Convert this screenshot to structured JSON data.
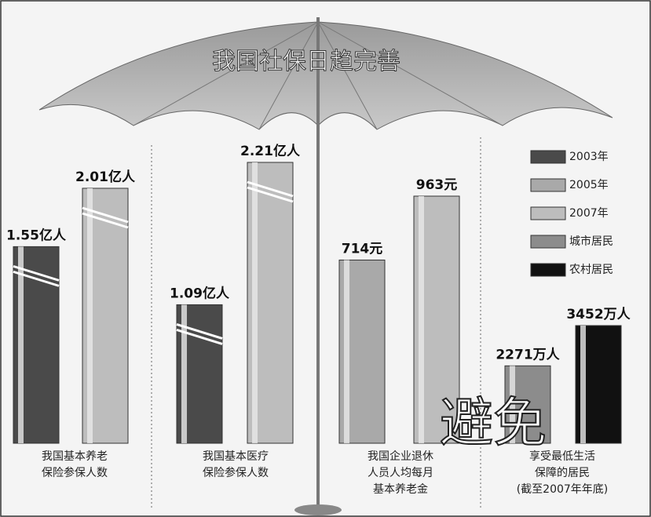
{
  "chart_data": {
    "type": "bar",
    "title": "我国社保日趋完善",
    "watermark": "避免",
    "categories": [
      "我国基本养老\n保险参保人数",
      "我国基本医疗\n保险参保人数",
      "我国企业退休\n人员人均每月\n基本养老金",
      "享受最低生活\n保障的居民\n(截至2007年年底)"
    ],
    "series": [
      {
        "name": "2003年",
        "color": "#4a4a4a",
        "values": [
          1.55,
          1.09,
          null,
          null
        ],
        "value_labels": [
          "1.55亿人",
          "1.09亿人",
          null,
          null
        ]
      },
      {
        "name": "2005年",
        "color": "#a9a9a9",
        "values": [
          null,
          null,
          714,
          null
        ],
        "value_labels": [
          null,
          null,
          "714元",
          null
        ]
      },
      {
        "name": "2007年",
        "color": "#bdbdbd",
        "values": [
          2.01,
          2.21,
          963,
          null
        ],
        "value_labels": [
          "2.01亿人",
          "2.21亿人",
          "963元",
          null
        ]
      },
      {
        "name": "城市居民",
        "color": "#8c8c8c",
        "values": [
          null,
          null,
          null,
          2271
        ],
        "value_labels": [
          null,
          null,
          null,
          "2271万人"
        ]
      },
      {
        "name": "农村居民",
        "color": "#111111",
        "values": [
          null,
          null,
          null,
          3452
        ],
        "value_labels": [
          null,
          null,
          null,
          "3452万人"
        ]
      }
    ]
  }
}
